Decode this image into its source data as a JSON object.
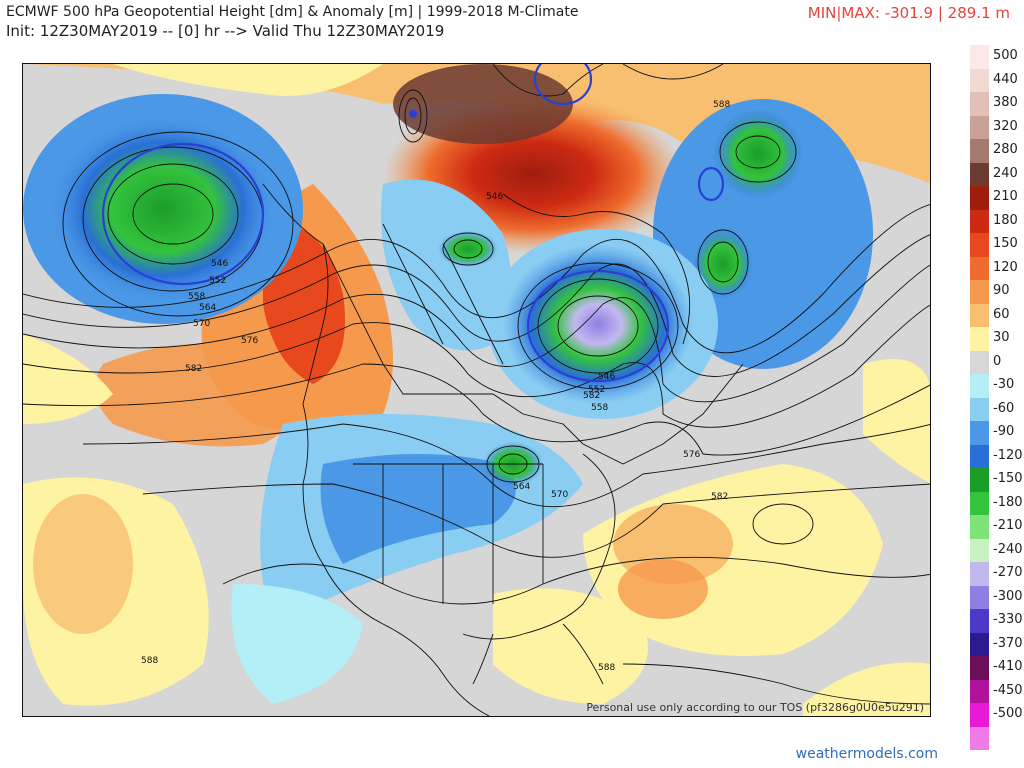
{
  "header": {
    "title": "ECMWF 500 hPa Geopotential Height [dm] & Anomaly [m] | 1999-2018 M-Climate",
    "init": "Init: 12Z30MAY2019 -- [0] hr --> Valid Thu 12Z30MAY2019",
    "minmax": "MIN|MAX: -301.9 | 289.1 m"
  },
  "map": {
    "tos": "Personal use only according to our TOS (pf3286g0U0e5u291)",
    "contour_labels": [
      "546",
      "552",
      "558",
      "564",
      "570",
      "576",
      "582",
      "588",
      "546",
      "552",
      "558",
      "564",
      "570",
      "576",
      "582",
      "588",
      "588",
      "546",
      "582"
    ]
  },
  "legend": {
    "items": [
      {
        "label": "500",
        "color": "#fbe9e7"
      },
      {
        "label": "440",
        "color": "#f3d9d4"
      },
      {
        "label": "380",
        "color": "#e2bfb7"
      },
      {
        "label": "320",
        "color": "#c9a196"
      },
      {
        "label": "280",
        "color": "#a47a6f"
      },
      {
        "label": "240",
        "color": "#6b3a30"
      },
      {
        "label": "210",
        "color": "#9e1e0e"
      },
      {
        "label": "180",
        "color": "#cd2a12"
      },
      {
        "label": "150",
        "color": "#e8481d"
      },
      {
        "label": "120",
        "color": "#ef6c2e"
      },
      {
        "label": "90",
        "color": "#f59a4c"
      },
      {
        "label": "60",
        "color": "#f8bf71"
      },
      {
        "label": "30",
        "color": "#fdf3a3"
      },
      {
        "label": "0",
        "color": "#d7d7d7"
      },
      {
        "label": "-30",
        "color": "#b4eef7"
      },
      {
        "label": "-60",
        "color": "#89cdf2"
      },
      {
        "label": "-90",
        "color": "#4a98e6"
      },
      {
        "label": "-120",
        "color": "#2a6fd5"
      },
      {
        "label": "-150",
        "color": "#1b9d2a"
      },
      {
        "label": "-180",
        "color": "#33c33d"
      },
      {
        "label": "-210",
        "color": "#7fe37a"
      },
      {
        "label": "-240",
        "color": "#c9f2c2"
      },
      {
        "label": "-270",
        "color": "#c2b8f0"
      },
      {
        "label": "-300",
        "color": "#8f7fe3"
      },
      {
        "label": "-330",
        "color": "#4a3ac7"
      },
      {
        "label": "-370",
        "color": "#2a1c8e"
      },
      {
        "label": "-410",
        "color": "#6b0f5a"
      },
      {
        "label": "-450",
        "color": "#b0129c"
      },
      {
        "label": "-500",
        "color": "#e81ad5"
      },
      {
        "label": "",
        "color": "#f07ae8"
      }
    ]
  },
  "footer": {
    "site": "weathermodels.com"
  }
}
